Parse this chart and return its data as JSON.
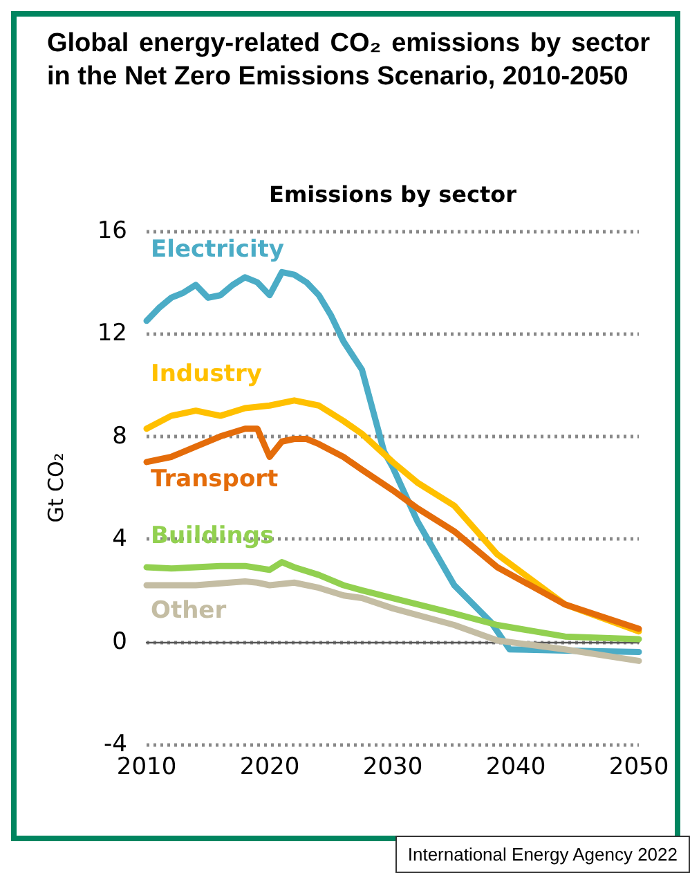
{
  "chart_data": {
    "type": "line",
    "title": "Global energy-related CO₂ emissions by sector in the Net Zero Emissions Scenario, 2010-2050",
    "subtitle": "Emissions by sector",
    "ylabel": "Gt CO₂",
    "annotations": [
      "International Energy Agency 2022"
    ],
    "series": [
      {
        "name": "Electricity",
        "color": "#4bacc6",
        "x": [
          2010,
          2011,
          2012,
          2013,
          2014,
          2015,
          2016,
          2017,
          2018,
          2019,
          2020,
          2021,
          2022,
          2023,
          2024,
          2025,
          2026,
          2027.5,
          2029.3,
          2030,
          2032,
          2035,
          2038,
          2039.5,
          2044,
          2050
        ],
        "values": [
          12.5,
          13.0,
          13.4,
          13.6,
          13.9,
          13.4,
          13.5,
          13.9,
          14.2,
          14.0,
          13.5,
          14.4,
          14.3,
          14.0,
          13.5,
          12.7,
          11.7,
          10.6,
          7.4,
          6.8,
          4.7,
          2.2,
          0.75,
          -0.3,
          -0.35,
          -0.4
        ]
      },
      {
        "name": "Industry",
        "color": "#ffc000",
        "x": [
          2010,
          2012,
          2014,
          2016,
          2018,
          2020,
          2022,
          2024,
          2026,
          2027.5,
          2030,
          2032,
          2035,
          2038.5,
          2044,
          2050
        ],
        "values": [
          8.3,
          8.8,
          9.0,
          8.8,
          9.1,
          9.2,
          9.4,
          9.2,
          8.6,
          8.1,
          7.0,
          6.2,
          5.3,
          3.4,
          1.45,
          0.4
        ]
      },
      {
        "name": "Transport",
        "color": "#e46c0a",
        "x": [
          2010,
          2012,
          2014,
          2016,
          2018,
          2019,
          2020,
          2021,
          2022,
          2023,
          2024,
          2026,
          2027.5,
          2030,
          2032,
          2035,
          2038.5,
          2044,
          2050
        ],
        "values": [
          7.0,
          7.2,
          7.6,
          8.0,
          8.3,
          8.3,
          7.2,
          7.8,
          7.9,
          7.9,
          7.7,
          7.2,
          6.7,
          5.9,
          5.2,
          4.3,
          2.9,
          1.45,
          0.5
        ]
      },
      {
        "name": "Buildings",
        "color": "#92d050",
        "x": [
          2010,
          2012,
          2014,
          2016,
          2018,
          2020,
          2021,
          2022,
          2024,
          2026,
          2027.5,
          2030,
          2035,
          2038.5,
          2044,
          2050
        ],
        "values": [
          2.9,
          2.85,
          2.9,
          2.95,
          2.95,
          2.8,
          3.1,
          2.9,
          2.6,
          2.2,
          2.0,
          1.7,
          1.1,
          0.65,
          0.2,
          0.1
        ]
      },
      {
        "name": "Other",
        "color": "#c4bda3",
        "x": [
          2010,
          2014,
          2018,
          2019,
          2020,
          2022,
          2024,
          2026,
          2027.5,
          2030,
          2035,
          2038.5,
          2044,
          2050
        ],
        "values": [
          2.2,
          2.2,
          2.35,
          2.3,
          2.2,
          2.3,
          2.1,
          1.8,
          1.7,
          1.3,
          0.65,
          0.05,
          -0.3,
          -0.75
        ]
      }
    ],
    "xlim": [
      2010,
      2050
    ],
    "xticks": [
      2010,
      2020,
      2030,
      2040,
      2050
    ],
    "ylim": [
      -4,
      16
    ],
    "yticks": [
      -4,
      0,
      4,
      8,
      12,
      16
    ],
    "grid": "y",
    "legend": false,
    "marker": "none",
    "line_style": "solid"
  }
}
